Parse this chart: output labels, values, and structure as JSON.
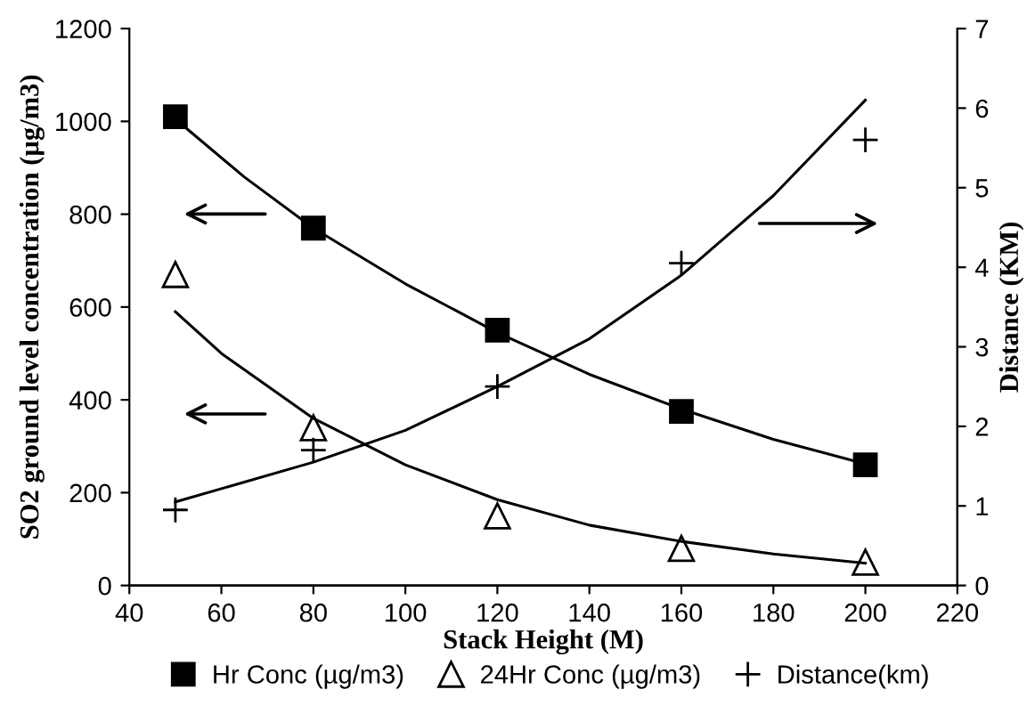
{
  "chart_data": {
    "type": "scatter",
    "xlabel": "Stack Height (M)",
    "ylabel": "SO2 ground level concentration (µg/m3)",
    "y2label": "Distance (KM)",
    "xlim": [
      40,
      220
    ],
    "xticks": [
      40,
      60,
      80,
      100,
      120,
      140,
      160,
      180,
      200,
      220
    ],
    "ylim": [
      0,
      1200
    ],
    "yticks": [
      0,
      200,
      400,
      600,
      800,
      1000,
      1200
    ],
    "y2lim": [
      0,
      7
    ],
    "y2ticks": [
      0,
      1,
      2,
      3,
      4,
      5,
      6,
      7
    ],
    "legend": "bottom",
    "grid": false,
    "series": [
      {
        "name": "Hr Conc (µg/m3)",
        "marker": "square",
        "color": "#000000",
        "x": [
          50,
          80,
          120,
          160,
          200
        ],
        "values": [
          1010,
          770,
          550,
          375,
          260
        ]
      },
      {
        "name": "24Hr Conc (µg/m3)",
        "marker": "triangle",
        "color": "#000000",
        "x": [
          50,
          80,
          120,
          160,
          200
        ],
        "values": [
          670,
          340,
          150,
          80,
          50
        ]
      },
      {
        "name": "Distance(km)",
        "marker": "cross",
        "color": "#000000",
        "axis": "y2",
        "x": [
          50,
          80,
          120,
          160,
          200
        ],
        "values": [
          0.95,
          1.7,
          2.5,
          4.05,
          5.6
        ]
      },
      {
        "type": "line",
        "color": "#000000",
        "x": [
          50,
          65,
          80,
          100,
          120,
          140,
          160,
          180,
          200
        ],
        "values": [
          1005,
          880,
          770,
          650,
          545,
          455,
          380,
          315,
          262
        ]
      },
      {
        "type": "line",
        "color": "#000000",
        "x": [
          50,
          60,
          80,
          100,
          120,
          140,
          160,
          180,
          200
        ],
        "values": [
          590,
          500,
          360,
          260,
          185,
          130,
          95,
          68,
          48
        ]
      },
      {
        "type": "line",
        "color": "#000000",
        "axis": "y2",
        "x": [
          50,
          80,
          100,
          120,
          140,
          160,
          180,
          200
        ],
        "values": [
          1.05,
          1.55,
          1.95,
          2.5,
          3.1,
          3.9,
          4.9,
          6.1
        ]
      }
    ]
  }
}
